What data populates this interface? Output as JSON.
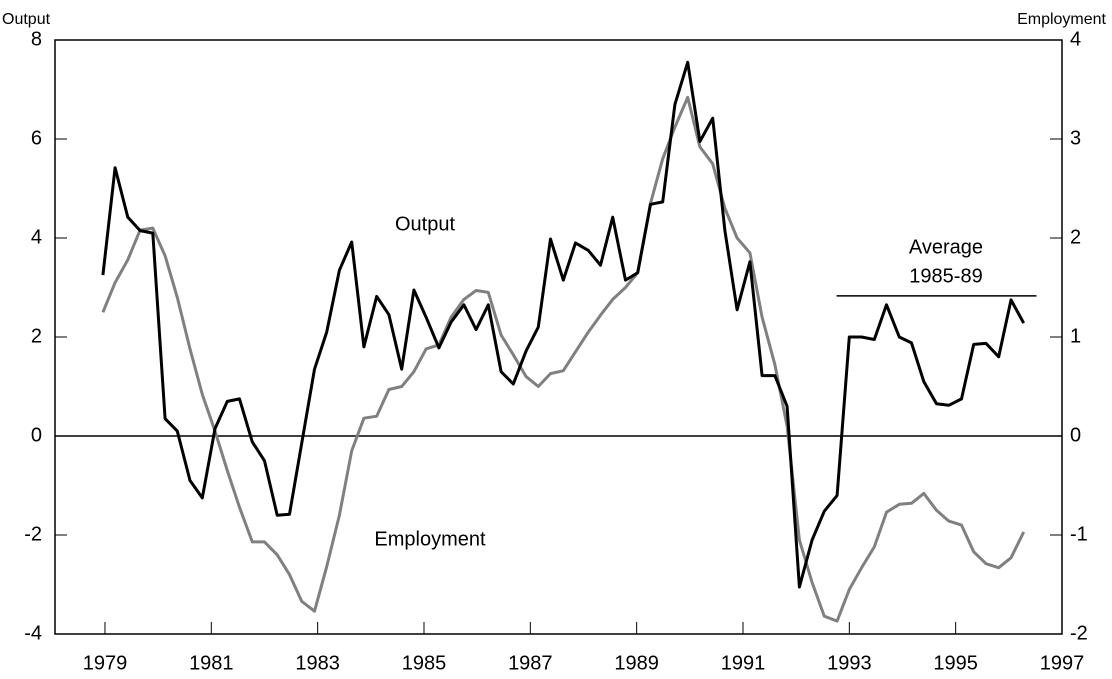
{
  "chart_data": {
    "type": "line",
    "y_axis_label": "Output",
    "y2_axis_label": "Employment",
    "annotations": [
      "Output",
      "Employment",
      "Average",
      "1985-89"
    ],
    "x": [
      1978.96,
      1979.19,
      1979.43,
      1979.66,
      1979.9,
      1980.13,
      1980.36,
      1980.6,
      1980.83,
      1981.07,
      1981.3,
      1981.53,
      1981.77,
      1982.0,
      1982.24,
      1982.47,
      1982.7,
      1982.94,
      1983.17,
      1983.41,
      1983.64,
      1983.87,
      1984.11,
      1984.34,
      1984.58,
      1984.81,
      1985.04,
      1985.28,
      1985.51,
      1985.75,
      1985.98,
      1986.21,
      1986.45,
      1986.68,
      1986.92,
      1987.15,
      1987.38,
      1987.62,
      1987.85,
      1988.09,
      1988.32,
      1988.55,
      1988.79,
      1989.02,
      1989.26,
      1989.49,
      1989.72,
      1989.96,
      1990.19,
      1990.43,
      1990.66,
      1990.89,
      1991.13,
      1991.36,
      1991.6,
      1991.83,
      1992.06,
      1992.3,
      1992.53,
      1992.77,
      1993.0,
      1993.23,
      1993.47,
      1993.7,
      1993.94,
      1994.17,
      1994.4,
      1994.64,
      1994.87,
      1995.11,
      1995.34,
      1995.57,
      1995.81,
      1996.04,
      1996.28
    ],
    "series": [
      {
        "name": "Output",
        "color": "#000000",
        "axis": "y",
        "values": [
          3.25,
          5.42,
          4.42,
          4.15,
          4.1,
          0.35,
          0.1,
          -0.9,
          -1.25,
          0.15,
          0.7,
          0.75,
          -0.12,
          -0.5,
          -1.6,
          -1.58,
          -0.15,
          1.35,
          2.1,
          3.35,
          3.92,
          1.8,
          2.82,
          2.45,
          1.35,
          2.95,
          2.4,
          1.78,
          2.3,
          2.65,
          2.15,
          2.65,
          1.3,
          1.05,
          1.72,
          2.2,
          3.98,
          3.15,
          3.9,
          3.75,
          3.45,
          4.42,
          3.15,
          3.3,
          4.68,
          4.73,
          6.7,
          7.55,
          5.95,
          6.42,
          4.15,
          2.55,
          3.52,
          1.22,
          1.22,
          0.6,
          -3.05,
          -2.1,
          -1.52,
          -1.2,
          2.0,
          2.0,
          1.95,
          2.65,
          2.0,
          1.88,
          1.1,
          0.65,
          0.62,
          0.75,
          1.85,
          1.87,
          1.6,
          2.75,
          2.28
        ]
      },
      {
        "name": "Employment",
        "color": "#808080",
        "axis": "y2",
        "values": [
          1.25,
          1.55,
          1.78,
          2.08,
          2.1,
          1.82,
          1.4,
          0.88,
          0.42,
          0.05,
          -0.35,
          -0.72,
          -1.07,
          -1.07,
          -1.2,
          -1.4,
          -1.67,
          -1.77,
          -1.32,
          -0.8,
          -0.15,
          0.18,
          0.2,
          0.47,
          0.5,
          0.65,
          0.88,
          0.92,
          1.2,
          1.38,
          1.47,
          1.45,
          1.02,
          0.82,
          0.6,
          0.5,
          0.63,
          0.66,
          0.85,
          1.05,
          1.22,
          1.38,
          1.5,
          1.65,
          2.35,
          2.8,
          3.12,
          3.42,
          2.92,
          2.75,
          2.3,
          2.0,
          1.85,
          1.2,
          0.72,
          0.1,
          -1.05,
          -1.48,
          -1.82,
          -1.87,
          -1.55,
          -1.33,
          -1.12,
          -0.77,
          -0.69,
          -0.68,
          -0.58,
          -0.75,
          -0.86,
          -0.9,
          -1.17,
          -1.29,
          -1.33,
          -1.23,
          -0.97
        ]
      }
    ],
    "average_line": {
      "y": 2.83,
      "x": [
        1992.76,
        1996.52
      ]
    },
    "xlim": [
      1978.06,
      1997.0
    ],
    "xticks": [
      1979,
      1981,
      1983,
      1985,
      1987,
      1989,
      1991,
      1993,
      1995,
      1997
    ],
    "ylim": [
      -4,
      8
    ],
    "yticks": [
      -4,
      -2,
      0,
      2,
      4,
      6,
      8
    ],
    "y2lim": [
      -2,
      4
    ],
    "y2ticks": [
      -2,
      -1,
      0,
      1,
      2,
      3,
      4
    ]
  }
}
